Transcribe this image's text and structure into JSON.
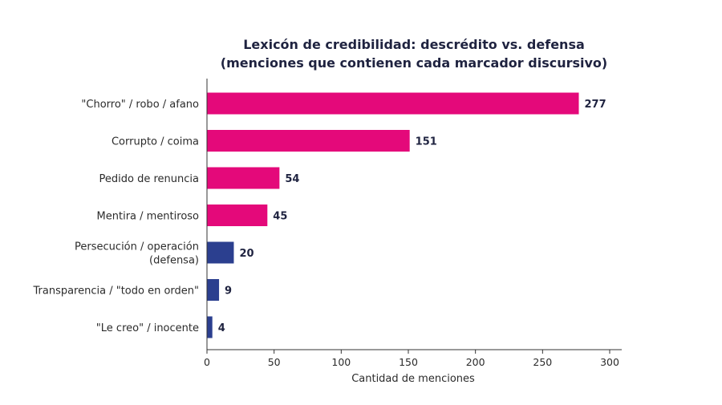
{
  "chart_data": {
    "type": "bar",
    "orientation": "horizontal",
    "title": "Lexicón de credibilidad: descrédito vs. defensa",
    "subtitle": "(menciones que contienen cada marcador discursivo)",
    "xlabel": "Cantidad de menciones",
    "ylabel": "",
    "xlim": [
      0,
      300
    ],
    "xticks": [
      0,
      50,
      100,
      150,
      200,
      250,
      300
    ],
    "grid": false,
    "categories": [
      [
        "\"Chorro\" / robo / afano"
      ],
      [
        "Corrupto / coima"
      ],
      [
        "Pedido de renuncia"
      ],
      [
        "Mentira / mentiroso"
      ],
      [
        "Persecución / operación",
        "(defensa)"
      ],
      [
        "Transparencia / \"todo en orden\""
      ],
      [
        "\"Le creo\" / inocente"
      ]
    ],
    "values": [
      277,
      151,
      54,
      45,
      20,
      9,
      4
    ],
    "bar_colors": [
      "#e4097a",
      "#e4097a",
      "#e4097a",
      "#e4097a",
      "#2b3f8f",
      "#2b3f8f",
      "#2b3f8f"
    ],
    "colors": {
      "descredito": "#e4097a",
      "defensa": "#2b3f8f"
    }
  }
}
